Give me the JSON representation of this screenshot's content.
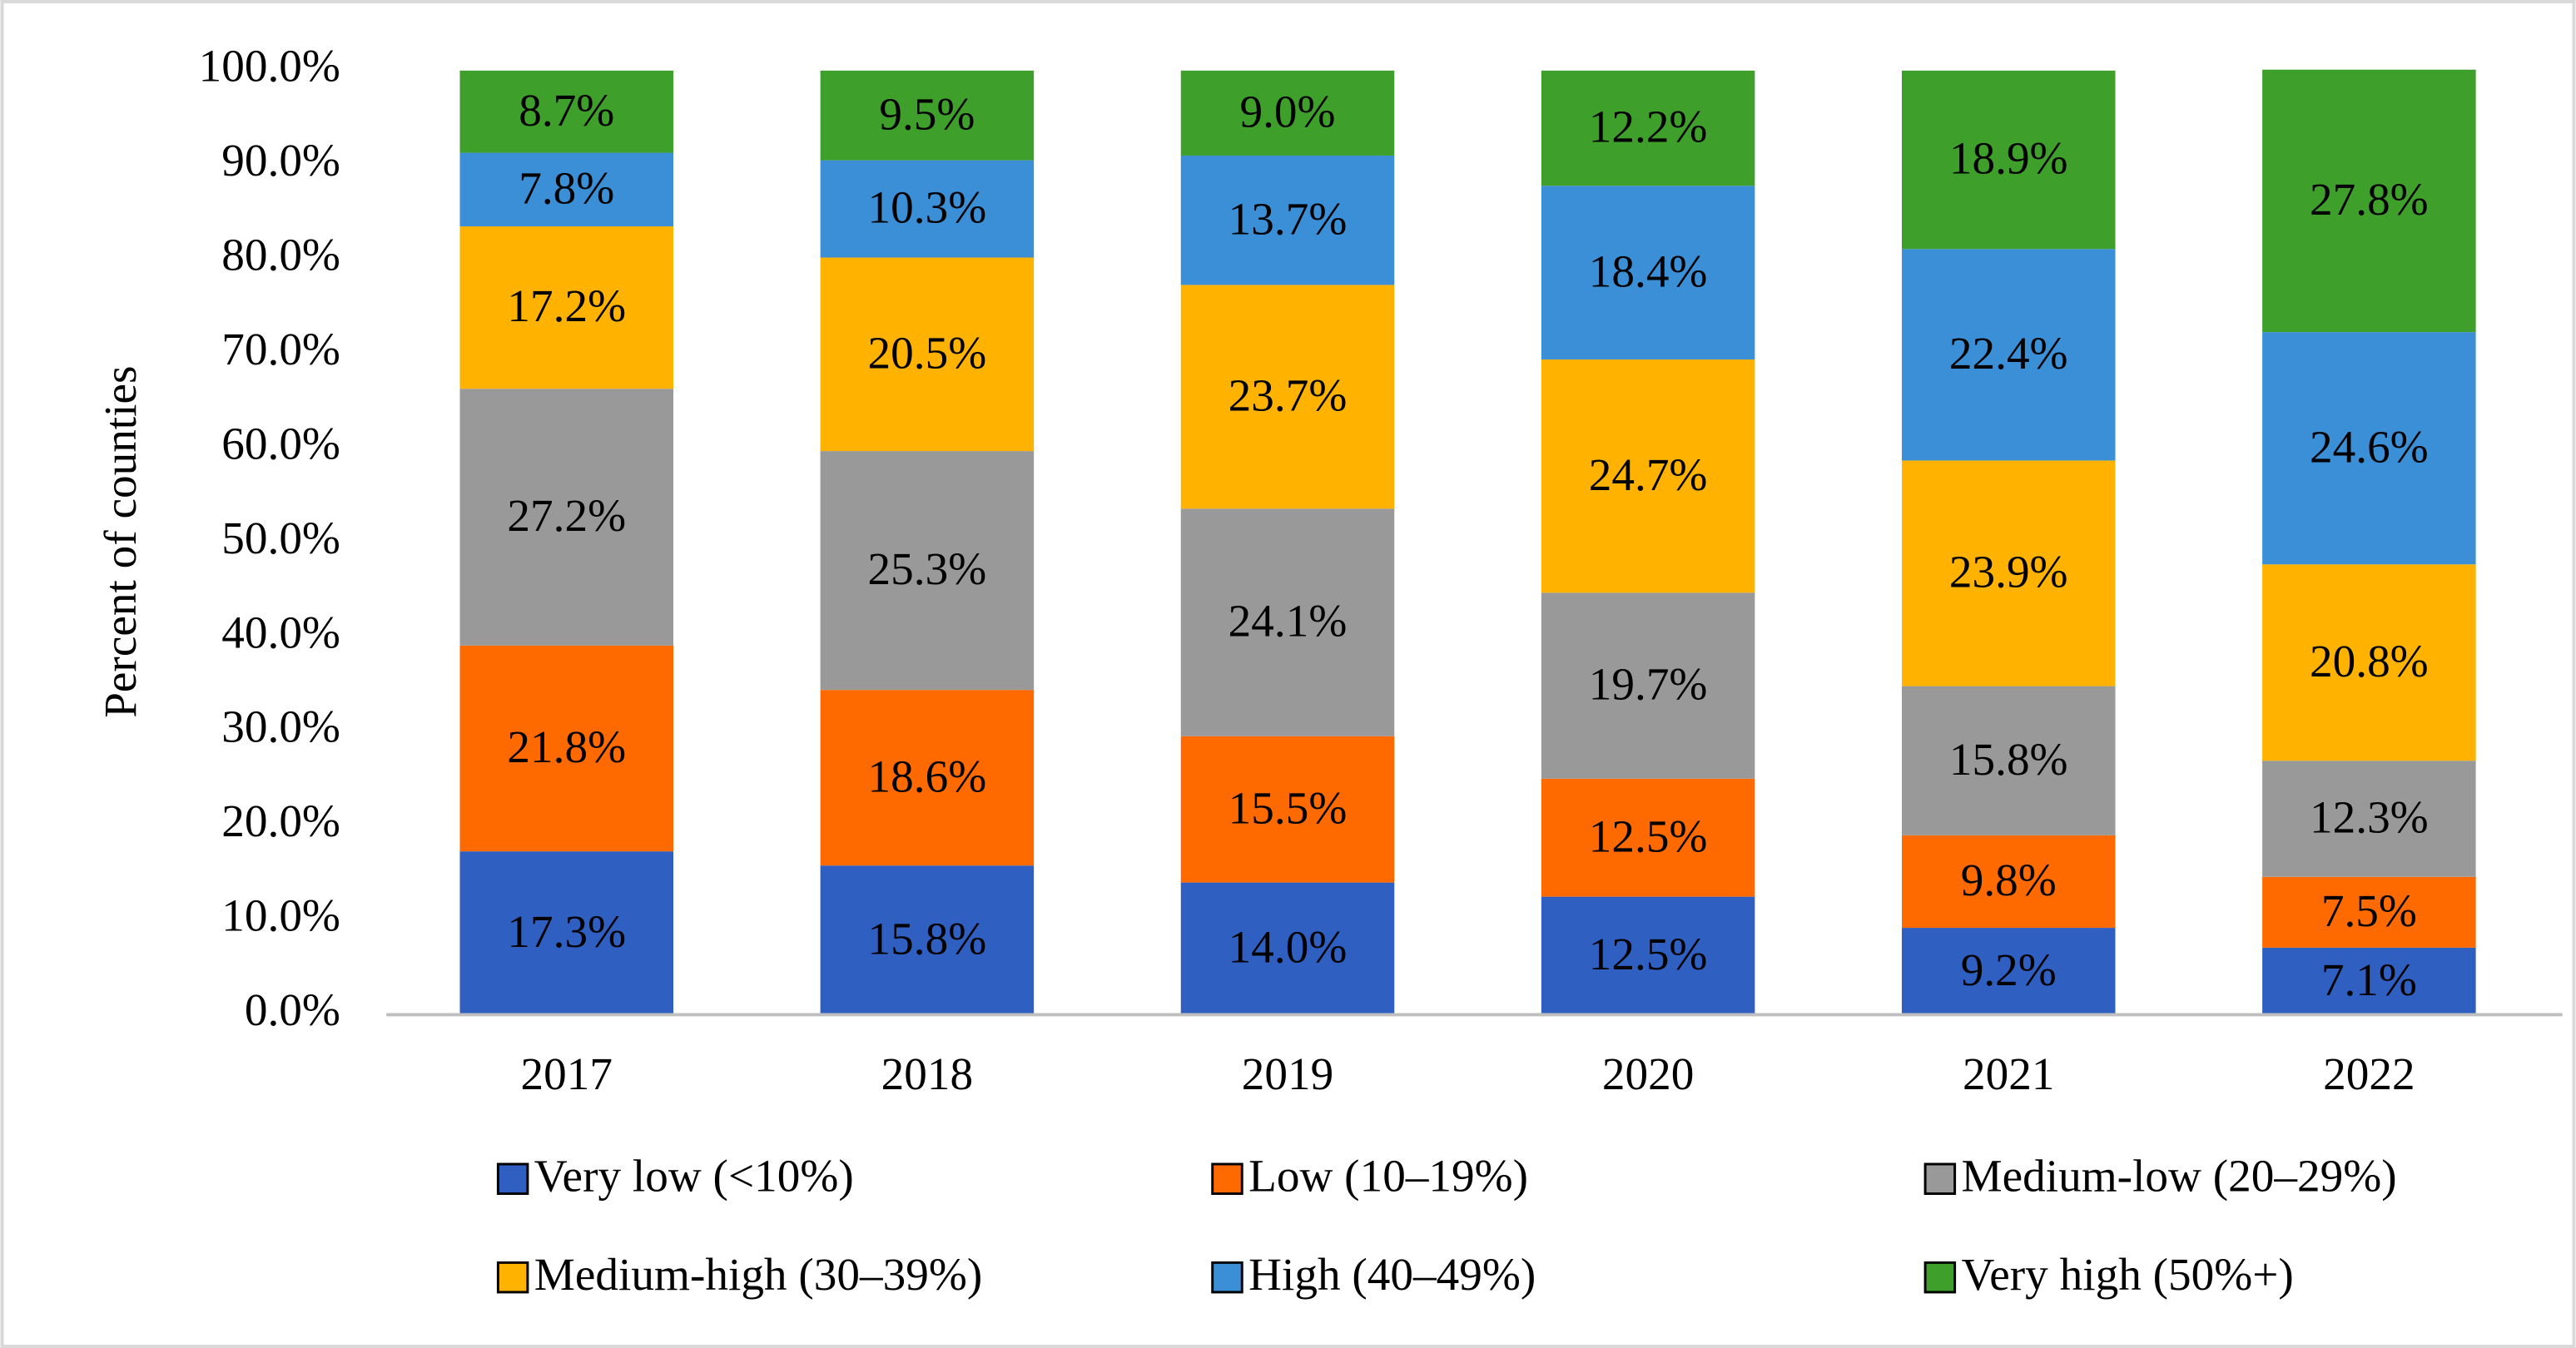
{
  "chart_data": {
    "type": "stacked_bar",
    "y_label": "Percent of counties",
    "categories": [
      "2017",
      "2018",
      "2019",
      "2020",
      "2021",
      "2022"
    ],
    "series": [
      {
        "name": "Very low (<10%)",
        "color": "#2f5fc1",
        "values": [
          17.3,
          15.8,
          14.0,
          12.5,
          9.2,
          7.1
        ],
        "value_labels": [
          "17.3%",
          "15.8%",
          "14.0%",
          "12.5%",
          "9.2%",
          "7.1%"
        ]
      },
      {
        "name": "Low (10–19%)",
        "color": "#ff6a00",
        "values": [
          21.8,
          18.6,
          15.5,
          12.5,
          9.8,
          7.5
        ],
        "value_labels": [
          "21.8%",
          "18.6%",
          "15.5%",
          "12.5%",
          "9.8%",
          "7.5%"
        ]
      },
      {
        "name": "Medium-low (20–29%)",
        "color": "#999999",
        "values": [
          27.2,
          25.3,
          24.1,
          19.7,
          15.8,
          12.3
        ],
        "value_labels": [
          "27.2%",
          "25.3%",
          "24.1%",
          "19.7%",
          "15.8%",
          "12.3%"
        ]
      },
      {
        "name": "Medium-high (30–39%)",
        "color": "#ffb300",
        "values": [
          17.2,
          20.5,
          23.7,
          24.7,
          23.9,
          20.8
        ],
        "value_labels": [
          "17.2%",
          "20.5%",
          "23.7%",
          "24.7%",
          "23.9%",
          "20.8%"
        ]
      },
      {
        "name": "High (40–49%)",
        "color": "#3a8fd6",
        "values": [
          7.8,
          10.3,
          13.7,
          18.4,
          22.4,
          24.6
        ],
        "value_labels": [
          "7.8%",
          "10.3%",
          "13.7%",
          "18.4%",
          "22.4%",
          "24.6%"
        ]
      },
      {
        "name": "Very high (50%+)",
        "color": "#3ea02b",
        "values": [
          8.7,
          9.5,
          9.0,
          12.2,
          18.9,
          27.8
        ],
        "value_labels": [
          "8.7%",
          "9.5%",
          "9.0%",
          "12.2%",
          "18.9%",
          "27.8%"
        ]
      }
    ],
    "ylim": [
      0,
      100
    ],
    "yticks": [
      {
        "value": 0,
        "label": "0.0%"
      },
      {
        "value": 10,
        "label": "10.0%"
      },
      {
        "value": 20,
        "label": "20.0%"
      },
      {
        "value": 30,
        "label": "30.0%"
      },
      {
        "value": 40,
        "label": "40.0%"
      },
      {
        "value": 50,
        "label": "50.0%"
      },
      {
        "value": 60,
        "label": "60.0%"
      },
      {
        "value": 70,
        "label": "70.0%"
      },
      {
        "value": 80,
        "label": "80.0%"
      },
      {
        "value": 90,
        "label": "90.0%"
      },
      {
        "value": 100,
        "label": "100.0%"
      }
    ],
    "grid": false,
    "legend": "bottom"
  }
}
